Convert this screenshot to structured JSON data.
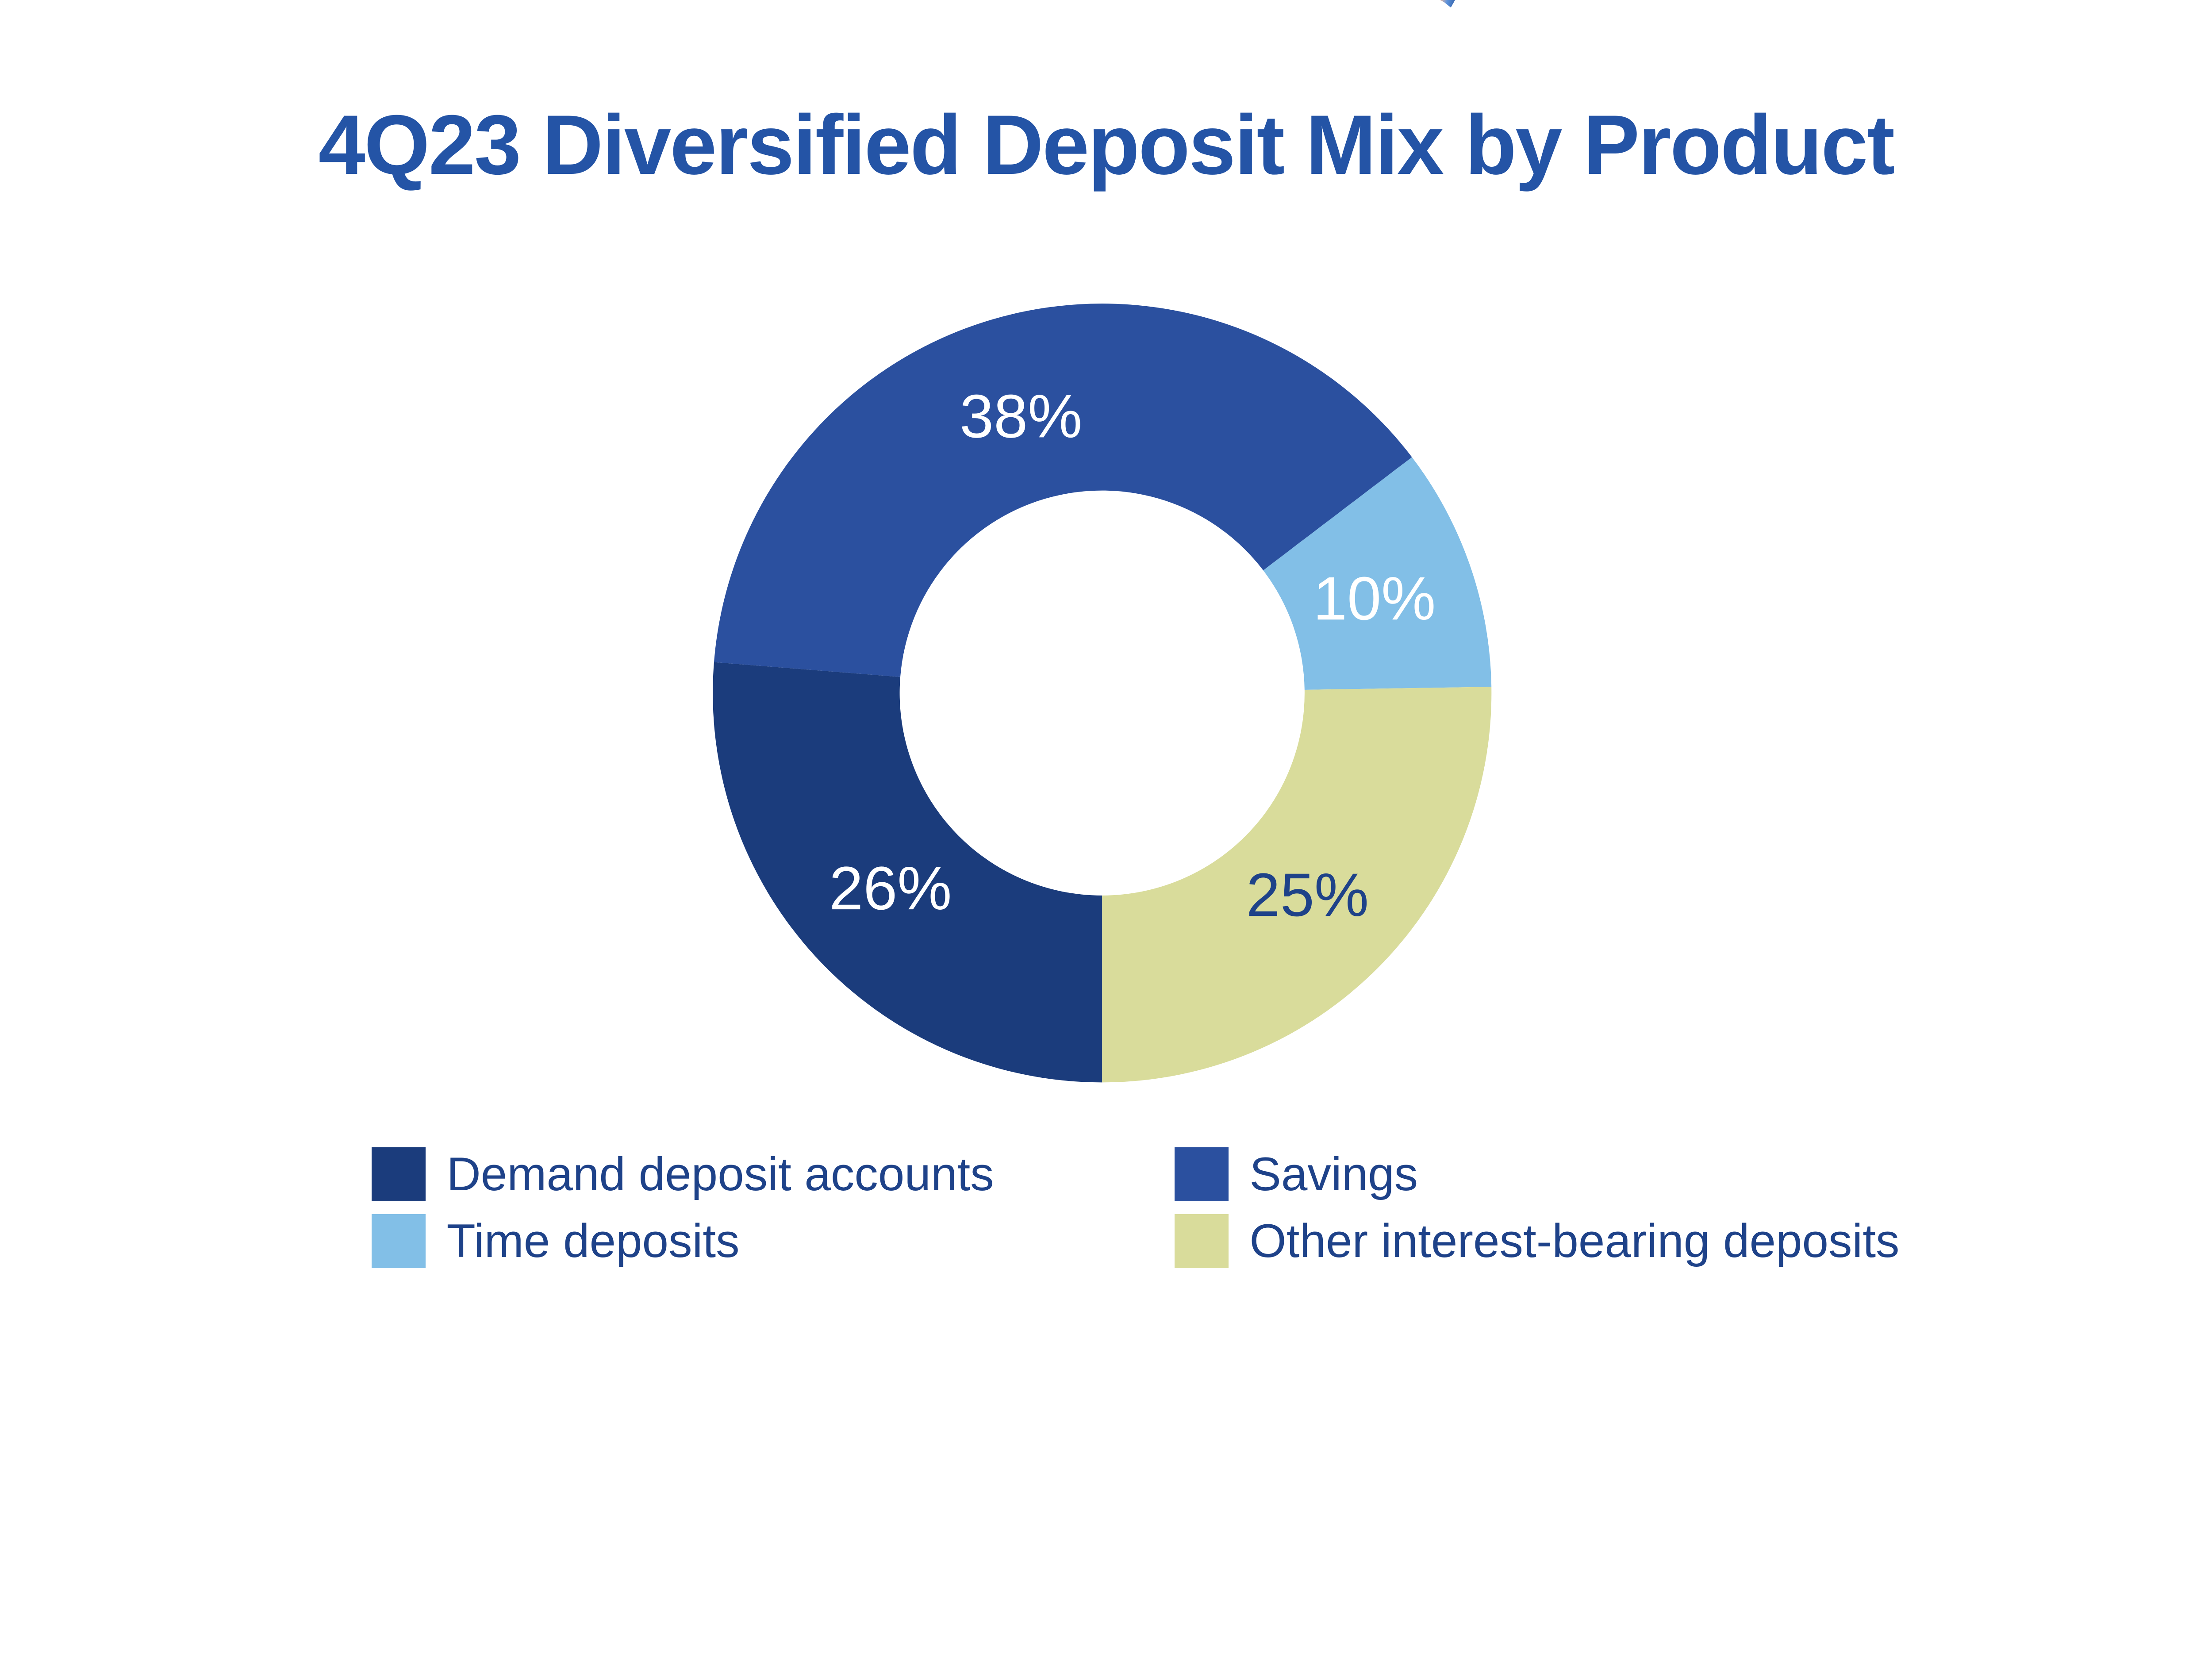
{
  "title": {
    "text": "4Q23 Diversified Deposit Mix by Product",
    "color": "#2454A6"
  },
  "chart_data": {
    "type": "pie",
    "subtype": "donut",
    "title": "4Q23 Diversified Deposit Mix by Product",
    "unit": "%",
    "start_angle_deg": 180,
    "direction": "clockwise",
    "inner_radius_ratio": 0.52,
    "label_radius_ratio": 0.74,
    "legend_position": "bottom",
    "slices": [
      {
        "label": "Demand deposit accounts",
        "value": 26,
        "display": "26%",
        "color": "#1B3C7C",
        "label_color": "#FFFFFF"
      },
      {
        "label": "Savings",
        "value": 38,
        "display": "38%",
        "color": "#2B509F",
        "label_color": "#FFFFFF"
      },
      {
        "label": "Time deposits",
        "value": 10,
        "display": "10%",
        "color": "#82BFE7",
        "label_color": "#FFFFFF"
      },
      {
        "label": "Other interest-bearing deposits",
        "value": 25,
        "display": "25%",
        "color": "#D9DC9B",
        "label_color": "#1E4289"
      }
    ]
  },
  "legend": {
    "text_color": "#1E4289"
  },
  "decoration": {
    "top_edge_artifact_colors": [
      "#EAB294",
      "#4A86D8",
      "#1D4F9E"
    ]
  }
}
